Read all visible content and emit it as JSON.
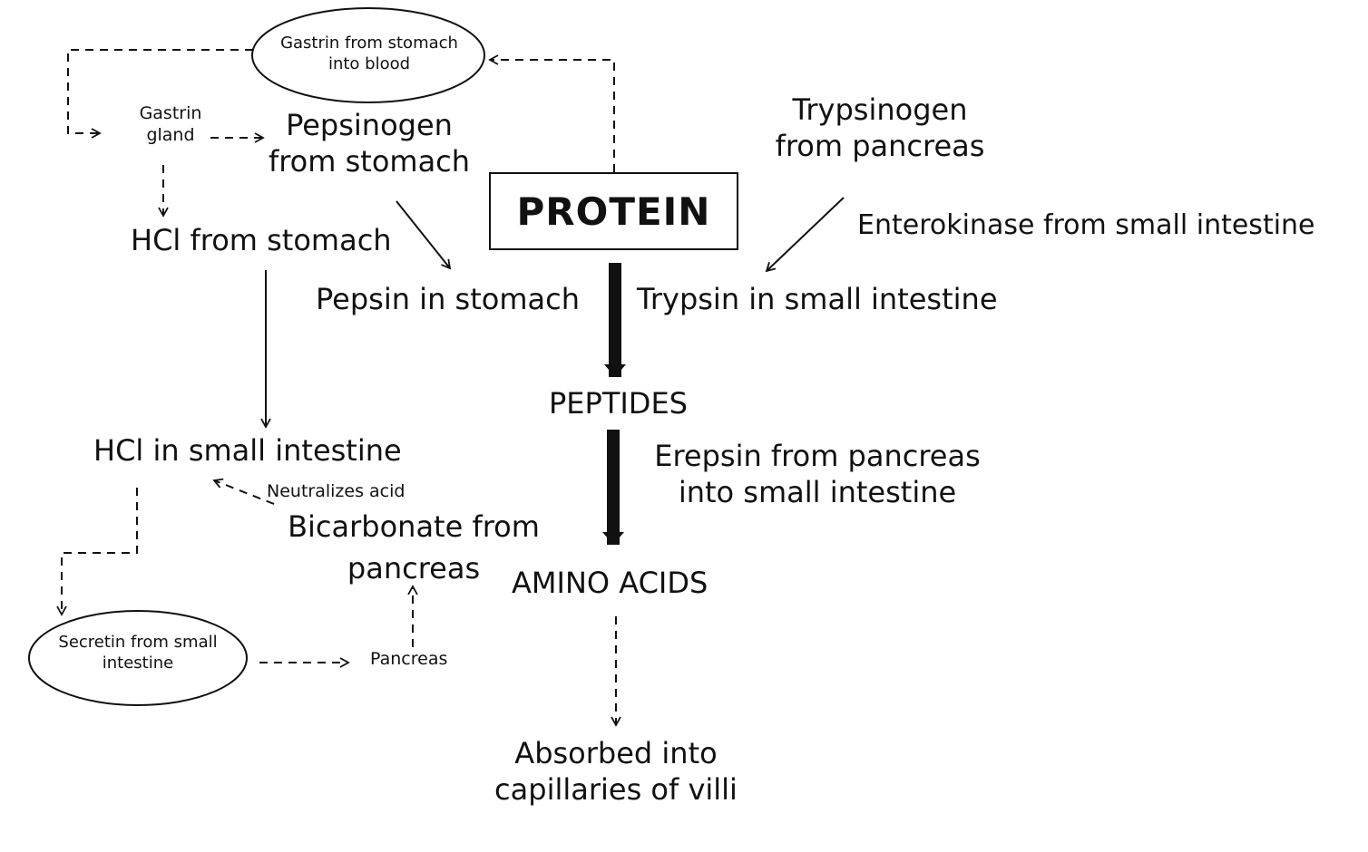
{
  "diagram": {
    "protein": "PROTEIN",
    "gastrin_blood": [
      "Gastrin from stomach",
      "into blood"
    ],
    "gastrin_gland": [
      "Gastrin",
      "gland"
    ],
    "pepsinogen": [
      "Pepsinogen",
      "from stomach"
    ],
    "hcl_stomach": "HCl from stomach",
    "pepsin": "Pepsin in stomach",
    "trypsinogen": [
      "Trypsinogen",
      "from pancreas"
    ],
    "enterokinase": "Enterokinase from small intestine",
    "trypsin": "Trypsin in small intestine",
    "peptides": "PEPTIDES",
    "erepsin": [
      "Erepsin from pancreas",
      "into small intestine"
    ],
    "amino_acids": "AMINO ACIDS",
    "absorbed": [
      "Absorbed into",
      "capillaries of villi"
    ],
    "hcl_small_intestine": "HCl in small intestine",
    "neutralizes": "Neutralizes acid",
    "bicarbonate": [
      "Bicarbonate from",
      "pancreas"
    ],
    "secretin": [
      "Secretin from small",
      "intestine"
    ],
    "pancreas": "Pancreas"
  }
}
